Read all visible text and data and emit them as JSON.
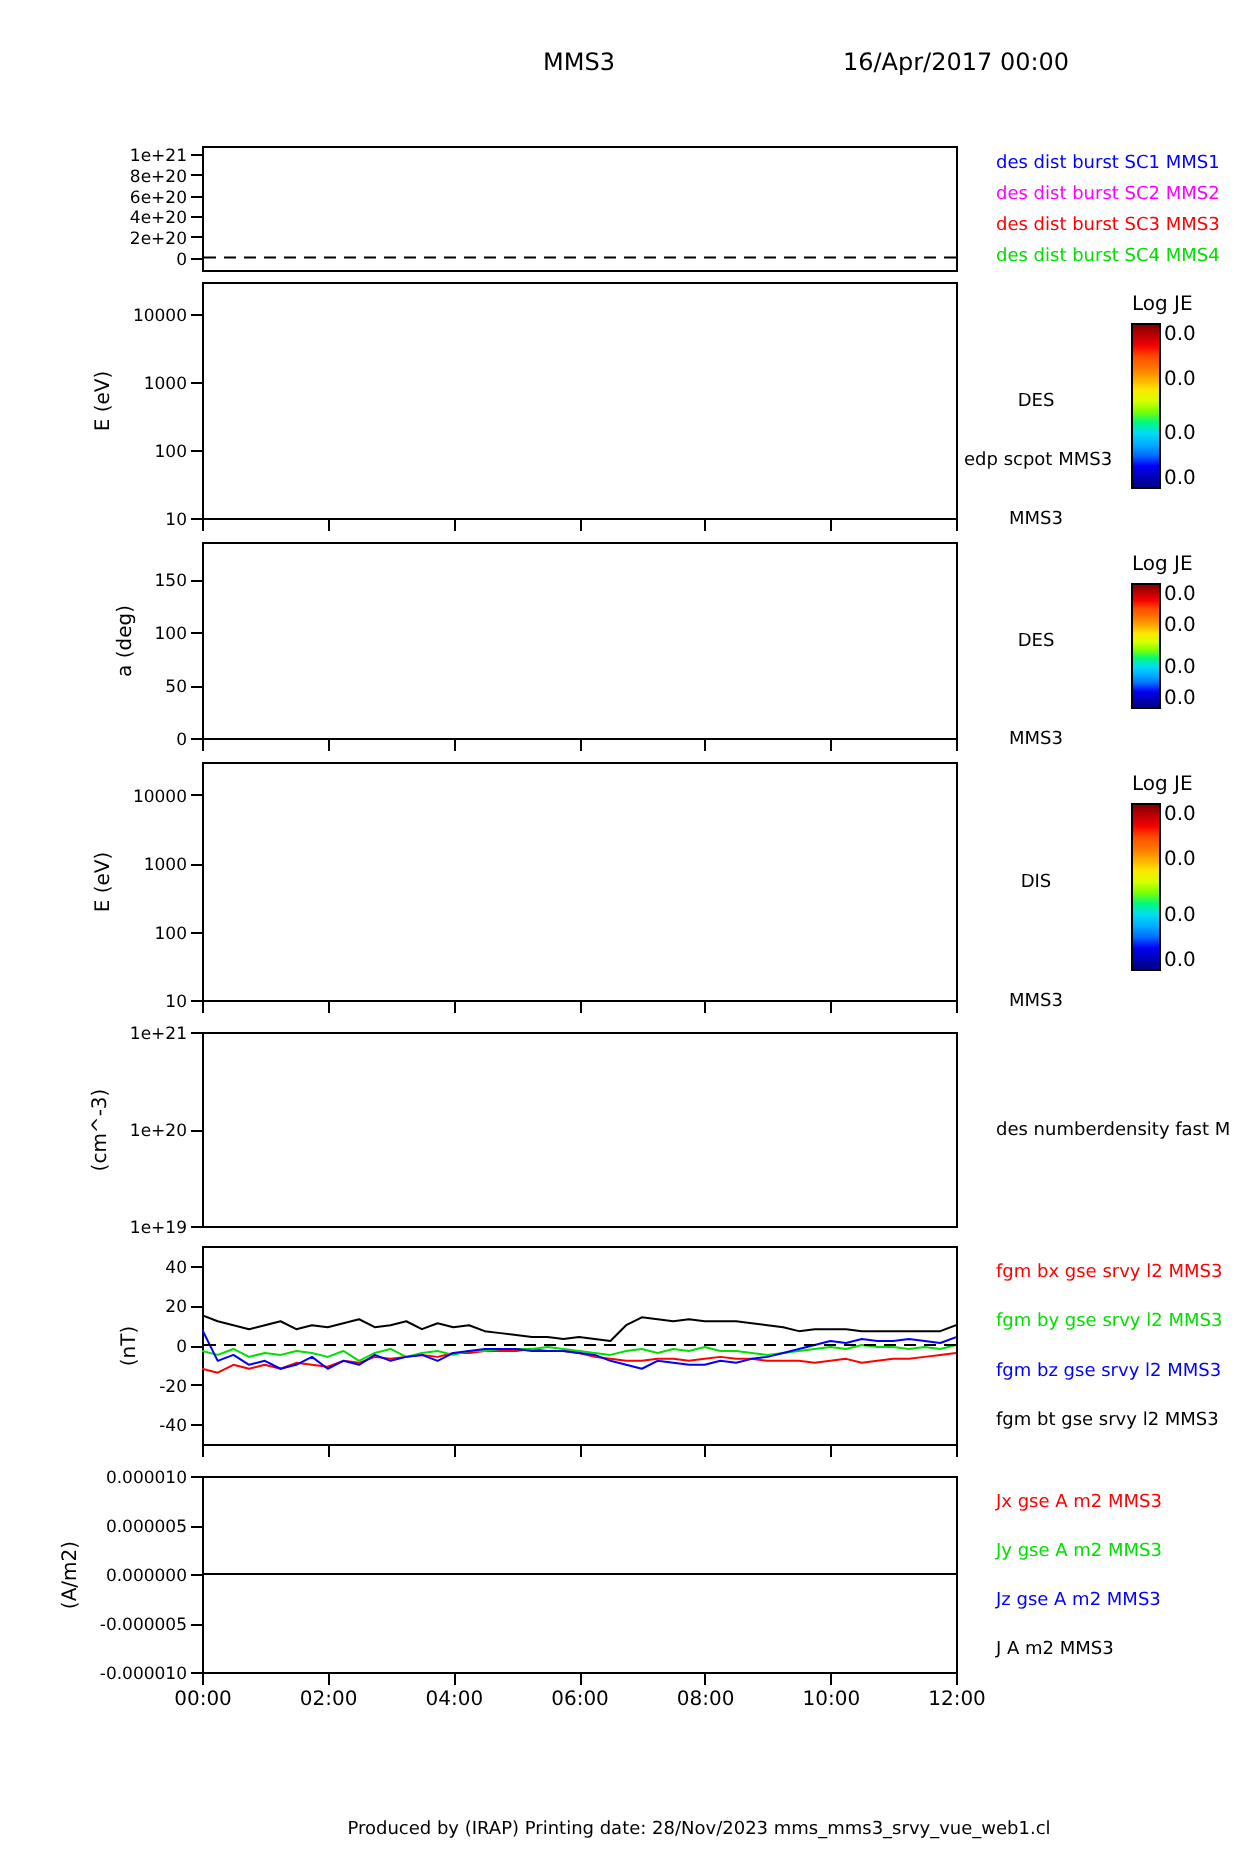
{
  "chart_data": [
    {
      "type": "line",
      "title": "MMS3",
      "subtitle": "16/Apr/2017 00:00",
      "ylim": [
        -1.2e+20,
        1.08e+21
      ],
      "yticks": [
        {
          "value": 0,
          "label": "0"
        },
        {
          "value": 2e+20,
          "label": "2e+20"
        },
        {
          "value": 4e+20,
          "label": "4e+20"
        },
        {
          "value": 6e+20,
          "label": "6e+20"
        },
        {
          "value": 8e+20,
          "label": "8e+20"
        },
        {
          "value": 1e+21,
          "label": "1e+21"
        }
      ],
      "tick_labels": "y",
      "ref_lines": [
        {
          "axis": "y",
          "value": 0,
          "color": "#000000",
          "line_style": "dashed"
        }
      ],
      "series": [
        {
          "name": "des dist burst SC1 MMS1",
          "color": "#0000ff"
        },
        {
          "name": "des dist burst SC2 MMS2",
          "color": "#ff00ff"
        },
        {
          "name": "des dist burst SC3 MMS3",
          "color": "#ff0000"
        },
        {
          "name": "des dist burst SC4 MMS4",
          "color": "#00e000"
        }
      ]
    },
    {
      "type": "heatmap",
      "ylabel": "E (eV)",
      "log": "y",
      "xlim": [
        0,
        12
      ],
      "xticks": [
        0,
        2,
        4,
        6,
        8,
        10,
        12
      ],
      "ylim": [
        10,
        30000
      ],
      "yticks": [
        10,
        100,
        1000,
        10000
      ],
      "tick_labels": "y",
      "annotations": [
        "DES",
        "MMS3"
      ],
      "clabel": "Log JE",
      "clim": [
        0,
        0.03
      ],
      "cticks": [
        {
          "value": 0,
          "label": "0.0"
        },
        {
          "value": 0.01,
          "label": "0.0"
        },
        {
          "value": 0.02,
          "label": "0.0"
        },
        {
          "value": 0.03,
          "label": "0.0"
        }
      ],
      "series": [
        {
          "name": "edp scpot MMS3",
          "color": "#000000"
        }
      ]
    },
    {
      "type": "heatmap",
      "ylabel": "a (deg)",
      "xlim": [
        0,
        12
      ],
      "xticks": [
        0,
        2,
        4,
        6,
        8,
        10,
        12
      ],
      "ylim": [
        0,
        185
      ],
      "yticks": [
        0,
        50,
        100,
        150
      ],
      "tick_labels": "y",
      "annotations": [
        "DES",
        "MMS3"
      ],
      "clabel": "Log JE",
      "clim": [
        0,
        0.03
      ],
      "cticks": [
        {
          "value": 0,
          "label": "0.0"
        },
        {
          "value": 0.01,
          "label": "0.0"
        },
        {
          "value": 0.02,
          "label": "0.0"
        },
        {
          "value": 0.03,
          "label": "0.0"
        }
      ]
    },
    {
      "type": "heatmap",
      "ylabel": "E (eV)",
      "log": "y",
      "xlim": [
        0,
        12
      ],
      "xticks": [
        0,
        2,
        4,
        6,
        8,
        10,
        12
      ],
      "ylim": [
        10,
        30000
      ],
      "yticks": [
        10,
        100,
        1000,
        10000
      ],
      "tick_labels": "y",
      "annotations": [
        "DIS",
        "MMS3"
      ],
      "clabel": "Log JE",
      "clim": [
        0,
        0.03
      ],
      "cticks": [
        {
          "value": 0,
          "label": "0.0"
        },
        {
          "value": 0.01,
          "label": "0.0"
        },
        {
          "value": 0.02,
          "label": "0.0"
        },
        {
          "value": 0.03,
          "label": "0.0"
        }
      ]
    },
    {
      "type": "line",
      "ylabel": "(cm^-3)",
      "log": "y",
      "ylim": [
        1e+19,
        1e+21
      ],
      "yticks": [
        {
          "value": 1e+19,
          "label": "1e+19"
        },
        {
          "value": 1e+20,
          "label": "1e+20"
        },
        {
          "value": 1e+21,
          "label": "1e+21"
        }
      ],
      "tick_labels": "y",
      "series": [
        {
          "name": "des numberdensity fast M",
          "color": "#000000"
        }
      ]
    },
    {
      "type": "line",
      "ylabel": "(nT)",
      "xlim": [
        0,
        12
      ],
      "xticks": [
        0,
        2,
        4,
        6,
        8,
        10,
        12
      ],
      "ylim": [
        -50,
        50
      ],
      "yticks": [
        -40,
        -20,
        0,
        20,
        40
      ],
      "tick_labels": "y",
      "ref_lines": [
        {
          "axis": "y",
          "value": 0,
          "color": "#000000",
          "line_style": "dashed"
        }
      ],
      "x": [
        0,
        0.25,
        0.5,
        0.75,
        1,
        1.25,
        1.5,
        1.75,
        2,
        2.25,
        2.5,
        2.75,
        3,
        3.25,
        3.5,
        3.75,
        4,
        4.25,
        4.5,
        4.75,
        5,
        5.25,
        5.5,
        5.75,
        6,
        6.25,
        6.5,
        6.75,
        7,
        7.25,
        7.5,
        7.75,
        8,
        8.25,
        8.5,
        8.75,
        9,
        9.25,
        9.5,
        9.75,
        10,
        10.25,
        10.5,
        10.75,
        11,
        11.25,
        11.5,
        11.75,
        12
      ],
      "series": [
        {
          "name": "fgm bx gse srvy l2 MMS3",
          "color": "#ff0000",
          "values": [
            -12,
            -14,
            -10,
            -12,
            -10,
            -12,
            -9,
            -10,
            -11,
            -8,
            -9,
            -6,
            -7,
            -6,
            -5,
            -6,
            -4,
            -4,
            -3,
            -3,
            -3,
            -2,
            -3,
            -3,
            -4,
            -6,
            -7,
            -8,
            -8,
            -7,
            -7,
            -8,
            -7,
            -6,
            -7,
            -7,
            -8,
            -8,
            -8,
            -9,
            -8,
            -7,
            -9,
            -8,
            -7,
            -7,
            -6,
            -5,
            -4
          ]
        },
        {
          "name": "fgm by gse srvy l2 MMS3",
          "color": "#00e000",
          "values": [
            -3,
            -5,
            -2,
            -6,
            -4,
            -5,
            -3,
            -4,
            -6,
            -3,
            -8,
            -4,
            -2,
            -6,
            -4,
            -3,
            -5,
            -3,
            -3,
            -2,
            -2,
            -2,
            -1,
            -2,
            -3,
            -4,
            -5,
            -3,
            -2,
            -4,
            -2,
            -3,
            -1,
            -3,
            -3,
            -4,
            -5,
            -4,
            -3,
            -2,
            -1,
            -2,
            0,
            -1,
            -1,
            -2,
            -1,
            -2,
            0
          ]
        },
        {
          "name": "fgm bz gse srvy l2 MMS3",
          "color": "#0000ff",
          "values": [
            8,
            -8,
            -5,
            -10,
            -8,
            -12,
            -10,
            -6,
            -12,
            -8,
            -10,
            -5,
            -8,
            -6,
            -5,
            -8,
            -4,
            -3,
            -2,
            -2,
            -2,
            -3,
            -3,
            -3,
            -4,
            -5,
            -8,
            -10,
            -12,
            -8,
            -9,
            -10,
            -10,
            -8,
            -9,
            -7,
            -6,
            -4,
            -2,
            0,
            2,
            1,
            3,
            2,
            2,
            3,
            2,
            1,
            4
          ]
        },
        {
          "name": "fgm bt gse srvy l2 MMS3",
          "color": "#000000",
          "values": [
            15,
            12,
            10,
            8,
            10,
            12,
            8,
            10,
            9,
            11,
            13,
            9,
            10,
            12,
            8,
            11,
            9,
            10,
            7,
            6,
            5,
            4,
            4,
            3,
            4,
            3,
            2,
            10,
            14,
            13,
            12,
            13,
            12,
            12,
            12,
            11,
            10,
            9,
            7,
            8,
            8,
            8,
            7,
            7,
            7,
            7,
            7,
            7,
            10
          ]
        }
      ]
    },
    {
      "type": "line",
      "ylabel": "(A/m2)",
      "xlim": [
        0,
        12
      ],
      "xticks": [
        {
          "value": 0,
          "label": "00:00"
        },
        {
          "value": 2,
          "label": "02:00"
        },
        {
          "value": 4,
          "label": "04:00"
        },
        {
          "value": 6,
          "label": "06:00"
        },
        {
          "value": 8,
          "label": "08:00"
        },
        {
          "value": 10,
          "label": "10:00"
        },
        {
          "value": 12,
          "label": "12:00"
        }
      ],
      "ylim": [
        -1e-05,
        1e-05
      ],
      "yticks": [
        {
          "value": -1e-05,
          "label": "-0.000010"
        },
        {
          "value": -5e-06,
          "label": "-0.000005"
        },
        {
          "value": 0,
          "label": "0.000000"
        },
        {
          "value": 5e-06,
          "label": "0.000005"
        },
        {
          "value": 1e-05,
          "label": "0.000010"
        }
      ],
      "annotations": [
        "Produced by (IRAP)   Printing date: 28/Nov/2023   mms_mms3_srvy_vue_web1.cl"
      ],
      "series": [
        {
          "name": "Jx gse A m2 MMS3",
          "color": "#ff0000"
        },
        {
          "name": "Jy gse A m2 MMS3",
          "color": "#00e000"
        },
        {
          "name": "Jz gse A m2 MMS3",
          "color": "#0000ff"
        },
        {
          "name": "J A m2 MMS3",
          "color": "#000000",
          "x": [
            0,
            12
          ],
          "values": [
            0,
            0
          ]
        }
      ]
    }
  ]
}
